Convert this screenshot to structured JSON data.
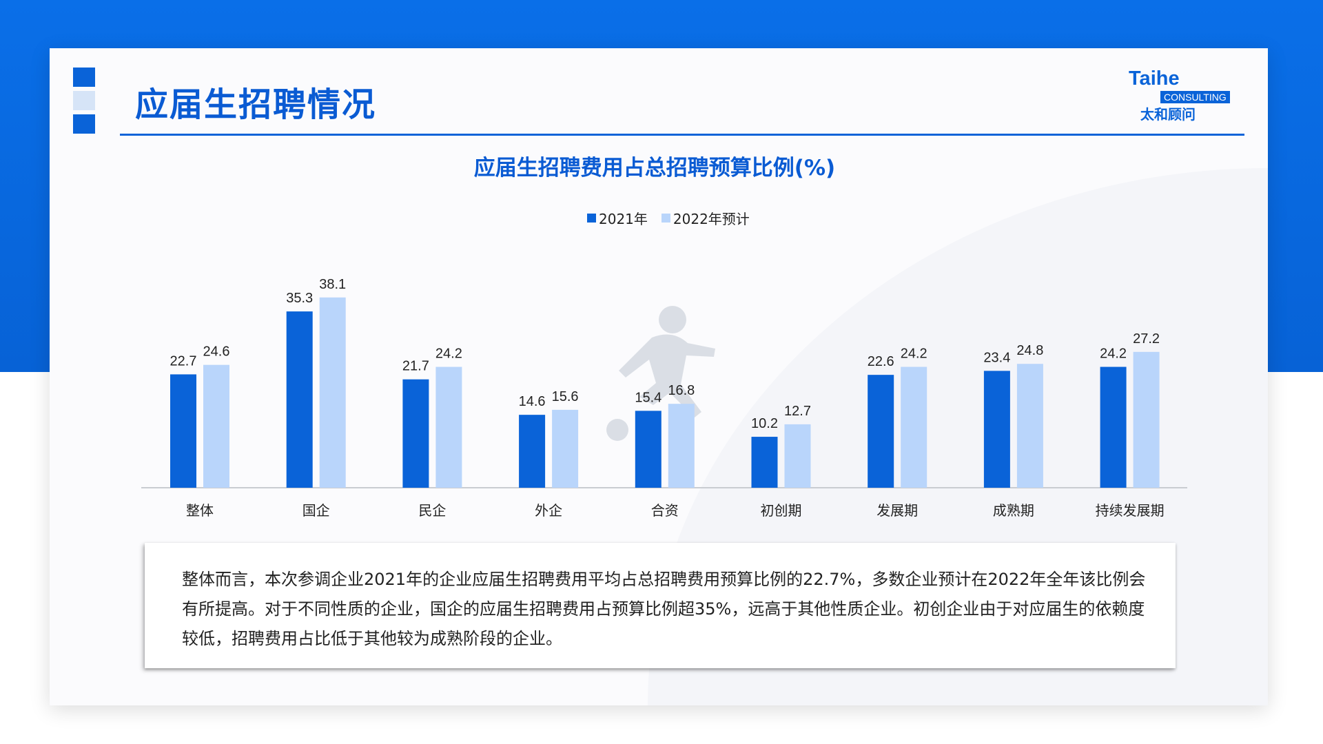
{
  "header": {
    "title": "应届生招聘情况"
  },
  "logo": {
    "name": "Taihe",
    "consulting": "CONSULTING",
    "chinese": "太和顾问"
  },
  "colors": {
    "brand_blue": "#0a63d8",
    "series_2021": "#0a63d8",
    "series_2022": "#b9d5fb",
    "background_top": "#0a6fe8"
  },
  "chart_data": {
    "type": "bar",
    "title": "应届生招聘费用占总招聘预算比例(%)",
    "categories": [
      "整体",
      "国企",
      "民企",
      "外企",
      "合资",
      "初创期",
      "发展期",
      "成熟期",
      "持续发展期"
    ],
    "series": [
      {
        "name": "2021年",
        "color": "#0a63d8",
        "values": [
          22.7,
          35.3,
          21.7,
          14.6,
          15.4,
          10.2,
          22.6,
          23.4,
          24.2
        ]
      },
      {
        "name": "2022年预计",
        "color": "#b9d5fb",
        "values": [
          24.6,
          38.1,
          24.2,
          15.6,
          16.8,
          12.7,
          24.2,
          24.8,
          27.2
        ]
      }
    ],
    "ylim": [
      0,
      40
    ],
    "grid": false,
    "legend": "top-center",
    "data_labels": true
  },
  "summary": {
    "text": "整体而言，本次参调企业2021年的企业应届生招聘费用平均占总招聘费用预算比例的22.7%，多数企业预计在2022年全年该比例会有所提高。对于不同性质的企业，国企的应届生招聘费用占预算比例超35%，远高于其他性质企业。初创企业由于对应届生的依赖度较低，招聘费用占比低于其他较为成熟阶段的企业。"
  }
}
